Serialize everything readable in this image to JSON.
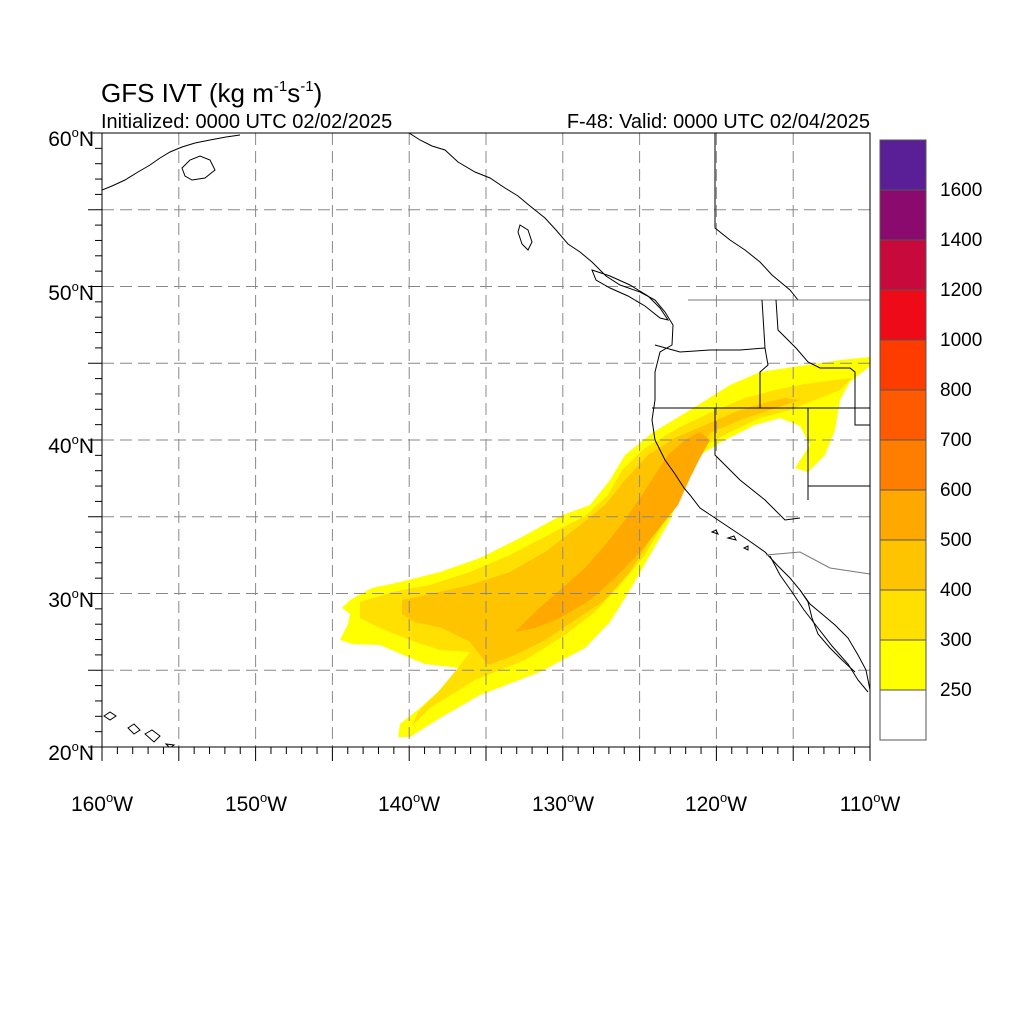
{
  "header": {
    "title_prefix": "GFS IVT (kg m",
    "title_sup1": "-1",
    "title_mid": "s",
    "title_sup2": "-1",
    "title_suffix": ")",
    "initialized": "Initialized: 0000 UTC 02/02/2025",
    "valid": "F-48: Valid: 0000 UTC 02/04/2025"
  },
  "map": {
    "projection": "cylindrical-equidistant",
    "lon_range": [
      -160,
      -110
    ],
    "lat_range": [
      20,
      60
    ],
    "grid_dashed_every_deg": 5,
    "lat_labels": [
      {
        "lat": 60,
        "num": "60",
        "deg": "o",
        "dir": "N"
      },
      {
        "lat": 50,
        "num": "50",
        "deg": "o",
        "dir": "N"
      },
      {
        "lat": 40,
        "num": "40",
        "deg": "o",
        "dir": "N"
      },
      {
        "lat": 30,
        "num": "30",
        "deg": "o",
        "dir": "N"
      },
      {
        "lat": 20,
        "num": "20",
        "deg": "o",
        "dir": "N"
      }
    ],
    "lon_labels": [
      {
        "lon": -160,
        "num": "160",
        "deg": "o",
        "dir": "W"
      },
      {
        "lon": -150,
        "num": "150",
        "deg": "o",
        "dir": "W"
      },
      {
        "lon": -140,
        "num": "140",
        "deg": "o",
        "dir": "W"
      },
      {
        "lon": -130,
        "num": "130",
        "deg": "o",
        "dir": "W"
      },
      {
        "lon": -120,
        "num": "120",
        "deg": "o",
        "dir": "W"
      },
      {
        "lon": -110,
        "num": "110",
        "deg": "o",
        "dir": "W"
      }
    ],
    "coastline_color": "#000000",
    "grid_color": "#888888"
  },
  "ivt_field": {
    "units": "kg m-1 s-1",
    "plume_axis_lonlat": [
      [
        -141,
        21
      ],
      [
        -136,
        26
      ],
      [
        -130,
        29.5
      ],
      [
        -125,
        35
      ],
      [
        -121,
        39
      ],
      [
        -117,
        42
      ],
      [
        -112,
        44.5
      ]
    ],
    "shown_levels_by_color": [
      "#ffff00",
      "#ffe000",
      "#ffc400",
      "#ffa800"
    ]
  },
  "colorbar": {
    "labels": [
      "1600",
      "1400",
      "1200",
      "1000",
      "800",
      "700",
      "600",
      "500",
      "400",
      "300",
      "250"
    ],
    "bins": [
      {
        "color": "#5a1e96"
      },
      {
        "color": "#8a0a6e"
      },
      {
        "color": "#c8093c"
      },
      {
        "color": "#ee0a16"
      },
      {
        "color": "#ff3c00"
      },
      {
        "color": "#ff5a00"
      },
      {
        "color": "#ff7e00"
      },
      {
        "color": "#ffa800"
      },
      {
        "color": "#ffc400"
      },
      {
        "color": "#ffe000"
      },
      {
        "color": "#ffff00"
      },
      {
        "color": "#ffffff"
      }
    ]
  }
}
